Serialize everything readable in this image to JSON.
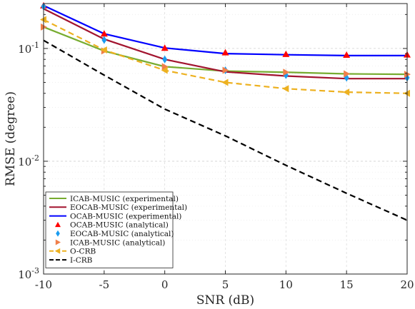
{
  "chart_data": {
    "type": "line",
    "xlabel": "SNR (dB)",
    "ylabel": "RMSE (degree)",
    "yscale": "log",
    "xlim": [
      -10,
      20
    ],
    "ylim": [
      0.001,
      0.25
    ],
    "x_ticks": [
      -10,
      -5,
      0,
      5,
      10,
      15,
      20
    ],
    "x_tick_labels": [
      "-10",
      "-5",
      "0",
      "5",
      "10",
      "15",
      "20"
    ],
    "y_ticks": [
      0.001,
      0.01,
      0.1
    ],
    "y_tick_labels": [
      {
        "base": "10",
        "exp": "-3"
      },
      {
        "base": "10",
        "exp": "-2"
      },
      {
        "base": "10",
        "exp": "-1"
      }
    ],
    "grid": true,
    "legend_position": "bottom-left",
    "x": [
      -10,
      -5,
      0,
      5,
      10,
      15,
      20
    ],
    "series": [
      {
        "name": "ICAB-MUSIC (experimental)",
        "color": "#77ac30",
        "style": "solid",
        "marker": "none",
        "values": [
          0.155,
          0.095,
          0.069,
          0.063,
          0.0615,
          0.0595,
          0.059
        ]
      },
      {
        "name": "EOCAB-MUSIC (experimental)",
        "color": "#a2142f",
        "style": "solid",
        "marker": "none",
        "values": [
          0.225,
          0.121,
          0.08,
          0.062,
          0.057,
          0.054,
          0.054
        ]
      },
      {
        "name": "OCAB-MUSIC (experimental)",
        "color": "#0000ff",
        "style": "solid",
        "marker": "none",
        "values": [
          0.24,
          0.135,
          0.101,
          0.09,
          0.088,
          0.0865,
          0.0865
        ]
      },
      {
        "name": "OCAB-MUSIC (analytical)",
        "color": "#ff0000",
        "style": "none",
        "marker": "triangle-up",
        "values": [
          0.24,
          0.135,
          0.101,
          0.092,
          0.089,
          0.0875,
          0.088
        ]
      },
      {
        "name": "EOCAB-MUSIC (analytical)",
        "color": "#1a9bef",
        "style": "none",
        "marker": "diamond",
        "values": [
          0.235,
          0.119,
          0.08,
          0.064,
          0.058,
          0.055,
          0.055
        ]
      },
      {
        "name": "ICAB-MUSIC (analytical)",
        "color": "#f07f4a",
        "style": "none",
        "marker": "triangle-right",
        "values": [
          0.155,
          0.095,
          0.069,
          0.064,
          0.0615,
          0.0595,
          0.059
        ]
      },
      {
        "name": "O-CRB",
        "color": "#edb120",
        "style": "dashed",
        "marker": "triangle-left",
        "values": [
          0.18,
          0.097,
          0.064,
          0.05,
          0.044,
          0.041,
          0.04
        ]
      },
      {
        "name": "I-CRB",
        "color": "#000000",
        "style": "dashed",
        "marker": "none",
        "values": [
          0.118,
          0.058,
          0.029,
          0.0168,
          0.0092,
          0.0052,
          0.003
        ]
      }
    ]
  }
}
